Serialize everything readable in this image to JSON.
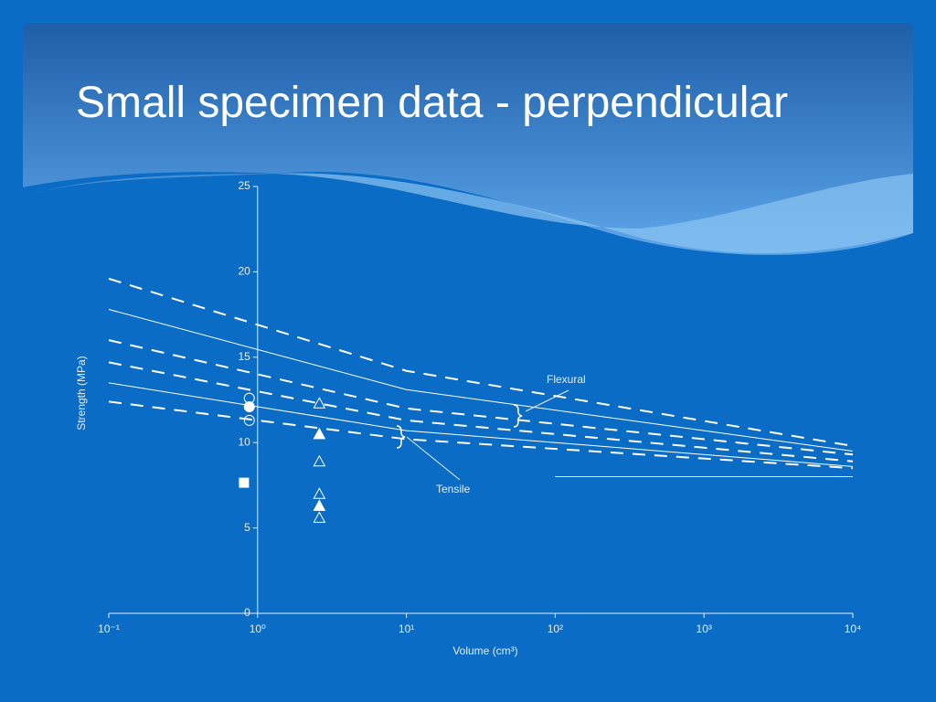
{
  "chart_data": {
    "type": "scatter",
    "title": "Small specimen data - perpendicular",
    "x_label": "Volume (cm³)",
    "y_label": "Strength (MPa)",
    "x_log": true,
    "xlim": [
      0.1,
      10000
    ],
    "xticks": [
      {
        "value": 0.1,
        "label": "10⁻¹"
      },
      {
        "value": 1,
        "label": "10⁰"
      },
      {
        "value": 10,
        "label": "10¹"
      },
      {
        "value": 100,
        "label": "10²"
      },
      {
        "value": 1000,
        "label": "10³"
      },
      {
        "value": 10000,
        "label": "10⁴"
      }
    ],
    "ylim": [
      0,
      25
    ],
    "yticks": [
      0,
      5,
      10,
      15,
      20,
      25
    ],
    "annotations": [
      "Flexural",
      "Tensile"
    ],
    "series": [
      {
        "kind": "line",
        "dash": true,
        "color": "#ffffff",
        "x": [
          0.1,
          10,
          10000
        ],
        "values": [
          19.6,
          14.2,
          9.8
        ]
      },
      {
        "kind": "line",
        "dash": false,
        "color": "#ffffff",
        "x": [
          0.1,
          10,
          10000
        ],
        "values": [
          17.8,
          13.1,
          9.5
        ]
      },
      {
        "kind": "line",
        "dash": true,
        "color": "#ffffff",
        "x": [
          0.1,
          10,
          10000
        ],
        "values": [
          16.0,
          12.0,
          9.3
        ]
      },
      {
        "kind": "line",
        "dash": true,
        "color": "#ffffff",
        "x": [
          0.1,
          10,
          10000
        ],
        "values": [
          14.7,
          11.3,
          8.9
        ]
      },
      {
        "kind": "line",
        "dash": false,
        "color": "#ffffff",
        "x": [
          0.1,
          10,
          10000
        ],
        "values": [
          13.5,
          10.7,
          8.6
        ]
      },
      {
        "kind": "line",
        "dash": true,
        "color": "#ffffff",
        "x": [
          0.1,
          10,
          10000
        ],
        "values": [
          12.4,
          10.2,
          8.5
        ]
      },
      {
        "kind": "line",
        "dash": false,
        "color": "#ffffff",
        "x": [
          100,
          10000
        ],
        "values": [
          8.0,
          8.0
        ]
      },
      {
        "kind": "points",
        "marker": "circle",
        "filled": false,
        "color": "#ffffff",
        "x": [
          0.88,
          0.88
        ],
        "values": [
          12.6,
          11.3
        ]
      },
      {
        "kind": "points",
        "marker": "circle",
        "filled": true,
        "color": "#ffffff",
        "x": [
          0.88
        ],
        "values": [
          12.1
        ]
      },
      {
        "kind": "points",
        "marker": "square",
        "filled": true,
        "color": "#ffffff",
        "x": [
          0.81
        ],
        "values": [
          7.65
        ]
      },
      {
        "kind": "points",
        "marker": "triangle",
        "filled": false,
        "color": "#ffffff",
        "x": [
          2.6,
          2.6,
          2.6,
          2.6
        ],
        "values": [
          12.3,
          8.9,
          7.0,
          5.6
        ]
      },
      {
        "kind": "points",
        "marker": "triangle",
        "filled": true,
        "color": "#ffffff",
        "x": [
          2.6,
          2.6
        ],
        "values": [
          10.5,
          6.3
        ]
      }
    ]
  }
}
